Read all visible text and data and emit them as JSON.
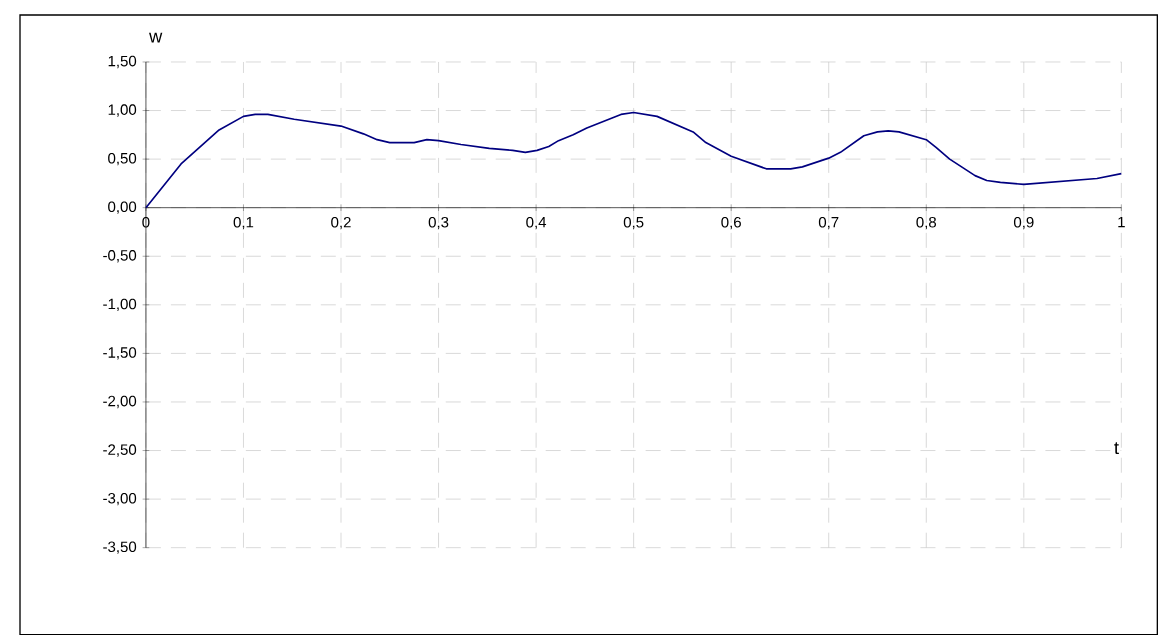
{
  "chart_data": {
    "type": "line",
    "xlabel": "t",
    "ylabel": "w",
    "x": [
      0,
      0.036,
      0.075,
      0.1,
      0.112,
      0.125,
      0.152,
      0.2,
      0.223,
      0.237,
      0.25,
      0.275,
      0.288,
      0.3,
      0.323,
      0.352,
      0.376,
      0.389,
      0.401,
      0.413,
      0.423,
      0.438,
      0.452,
      0.487,
      0.5,
      0.524,
      0.561,
      0.574,
      0.6,
      0.636,
      0.661,
      0.673,
      0.7,
      0.712,
      0.736,
      0.75,
      0.761,
      0.772,
      0.8,
      0.81,
      0.824,
      0.85,
      0.862,
      0.876,
      0.9,
      0.975,
      1.0
    ],
    "values": [
      0,
      0.45,
      0.8,
      0.94,
      0.96,
      0.96,
      0.91,
      0.84,
      0.76,
      0.7,
      0.67,
      0.67,
      0.7,
      0.69,
      0.65,
      0.61,
      0.59,
      0.57,
      0.59,
      0.63,
      0.69,
      0.75,
      0.82,
      0.96,
      0.98,
      0.94,
      0.78,
      0.67,
      0.53,
      0.4,
      0.4,
      0.42,
      0.51,
      0.57,
      0.74,
      0.78,
      0.79,
      0.78,
      0.7,
      0.62,
      0.5,
      0.33,
      0.28,
      0.26,
      0.24,
      0.3,
      0.35
    ],
    "color": "#000080",
    "xlim": [
      0,
      1
    ],
    "ylim": [
      -3.5,
      1.5
    ],
    "xticks": [
      0,
      {
        "value": 0.1,
        "label": "0,1"
      },
      {
        "value": 0.2,
        "label": "0,2"
      },
      {
        "value": 0.3,
        "label": "0,3"
      },
      {
        "value": 0.4,
        "label": "0,4"
      },
      {
        "value": 0.5,
        "label": "0,5"
      },
      {
        "value": 0.6,
        "label": "0,6"
      },
      {
        "value": 0.7,
        "label": "0,7"
      },
      {
        "value": 0.8,
        "label": "0,8"
      },
      {
        "value": 0.9,
        "label": "0,9"
      },
      1
    ],
    "yticks": [
      {
        "value": -3.5,
        "label": "-3,50"
      },
      {
        "value": -3.0,
        "label": "-3,00"
      },
      {
        "value": -2.5,
        "label": "-2,50"
      },
      {
        "value": -2.0,
        "label": "-2,00"
      },
      {
        "value": -1.5,
        "label": "-1,50"
      },
      {
        "value": -1.0,
        "label": "-1,00"
      },
      {
        "value": -0.5,
        "label": "-0,50"
      },
      {
        "value": 0,
        "label": "0,00"
      },
      {
        "value": 0.5,
        "label": "0,50"
      },
      {
        "value": 1.0,
        "label": "1,00"
      },
      {
        "value": 1.5,
        "label": "1,50"
      }
    ],
    "grid": true,
    "marker": "none",
    "line_style": "solid"
  }
}
